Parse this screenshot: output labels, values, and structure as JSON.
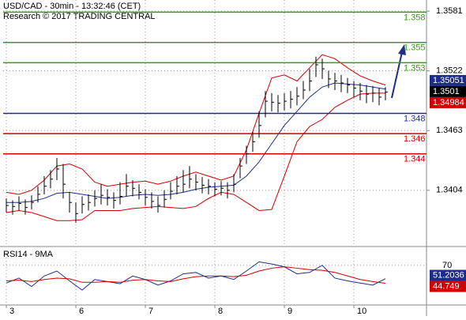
{
  "header": {
    "title": "USD/CAD - 30min - 13:32:46 (CET)",
    "credit": "Research © 2017 TRADING CENTRAL"
  },
  "chart_data": [
    {
      "type": "ohlc",
      "color": "#000000",
      "ylim": [
        1.335,
        1.3592
      ],
      "yticks": [
        1.3581,
        1.3522,
        1.3463,
        1.3404
      ],
      "xlim": [
        -0.5,
        66.5
      ],
      "xticks": [
        {
          "value": 0,
          "label": "3"
        },
        {
          "value": 11,
          "label": "6"
        },
        {
          "value": 22,
          "label": "7"
        },
        {
          "value": 33,
          "label": "8"
        },
        {
          "value": 44,
          "label": "9"
        },
        {
          "value": 55,
          "label": "10"
        }
      ],
      "grid": true,
      "close": [
        1.3389,
        1.3388,
        1.3391,
        1.3387,
        1.3392,
        1.34,
        1.3408,
        1.3415,
        1.3425,
        1.341,
        1.3392,
        1.3381,
        1.339,
        1.3392,
        1.3396,
        1.3399,
        1.3397,
        1.3394,
        1.3398,
        1.3408,
        1.3406,
        1.3402,
        1.3397,
        1.3393,
        1.3389,
        1.3395,
        1.3403,
        1.3408,
        1.341,
        1.3415,
        1.3412,
        1.3409,
        1.3408,
        1.3405,
        1.3406,
        1.3404,
        1.341,
        1.3428,
        1.344,
        1.3452,
        1.3468,
        1.3492,
        1.3491,
        1.349,
        1.3492,
        1.3494,
        1.3497,
        1.3503,
        1.3512,
        1.3528,
        1.3524,
        1.3514,
        1.3512,
        1.351,
        1.3508,
        1.3505,
        1.3502,
        1.3499,
        1.35,
        1.3496,
        1.3501
      ],
      "high": [
        1.3396,
        1.3394,
        1.3398,
        1.3395,
        1.3399,
        1.3408,
        1.3418,
        1.3424,
        1.3436,
        1.343,
        1.3402,
        1.3392,
        1.3398,
        1.34,
        1.3404,
        1.341,
        1.3405,
        1.3402,
        1.3412,
        1.342,
        1.3414,
        1.341,
        1.3405,
        1.3402,
        1.3398,
        1.3404,
        1.3412,
        1.3418,
        1.3424,
        1.3428,
        1.342,
        1.3417,
        1.3415,
        1.3412,
        1.3413,
        1.3412,
        1.342,
        1.3436,
        1.3448,
        1.3462,
        1.3482,
        1.3502,
        1.35,
        1.3498,
        1.35,
        1.3502,
        1.3506,
        1.3512,
        1.3524,
        1.3536,
        1.3534,
        1.3522,
        1.352,
        1.3518,
        1.3515,
        1.3512,
        1.351,
        1.3508,
        1.3507,
        1.3505,
        1.3506
      ],
      "low": [
        1.3382,
        1.338,
        1.3384,
        1.338,
        1.3385,
        1.3392,
        1.34,
        1.3406,
        1.3414,
        1.3396,
        1.3382,
        1.3372,
        1.3381,
        1.3384,
        1.3388,
        1.339,
        1.3389,
        1.3386,
        1.339,
        1.3398,
        1.3398,
        1.3395,
        1.3389,
        1.3386,
        1.3382,
        1.3387,
        1.3395,
        1.34,
        1.3402,
        1.3406,
        1.3404,
        1.3401,
        1.34,
        1.3398,
        1.3399,
        1.3396,
        1.3402,
        1.3416,
        1.343,
        1.3442,
        1.3456,
        1.3476,
        1.3482,
        1.3481,
        1.3483,
        1.3485,
        1.3488,
        1.3494,
        1.3502,
        1.3516,
        1.3514,
        1.3505,
        1.3503,
        1.3501,
        1.35,
        1.3496,
        1.3493,
        1.349,
        1.3491,
        1.3488,
        1.3493
      ],
      "bands": [
        {
          "color": "#d00000",
          "x": [
            0,
            2,
            4,
            6,
            8,
            10,
            12,
            14,
            16,
            18,
            20,
            22,
            24,
            26,
            28,
            30,
            32,
            34,
            36,
            38,
            40,
            42,
            44,
            46,
            48,
            50,
            52,
            54,
            56,
            58,
            60
          ],
          "values": [
            1.3402,
            1.34,
            1.3404,
            1.3414,
            1.3428,
            1.343,
            1.3425,
            1.3412,
            1.3408,
            1.341,
            1.3412,
            1.3413,
            1.341,
            1.3413,
            1.3418,
            1.3422,
            1.3418,
            1.3414,
            1.3418,
            1.3444,
            1.348,
            1.3515,
            1.3518,
            1.3512,
            1.3525,
            1.3538,
            1.3534,
            1.3525,
            1.3517,
            1.3512,
            1.3508
          ]
        },
        {
          "color": "#d00000",
          "x": [
            0,
            2,
            4,
            6,
            8,
            10,
            12,
            14,
            16,
            18,
            20,
            22,
            24,
            26,
            28,
            30,
            32,
            34,
            36,
            38,
            40,
            42,
            44,
            46,
            48,
            50,
            52,
            54,
            56,
            58,
            60
          ],
          "values": [
            1.3382,
            1.3384,
            1.3382,
            1.3378,
            1.3374,
            1.3374,
            1.3375,
            1.3384,
            1.3384,
            1.3384,
            1.3386,
            1.3387,
            1.3388,
            1.3387,
            1.3386,
            1.3388,
            1.3396,
            1.3402,
            1.34,
            1.3392,
            1.3384,
            1.3385,
            1.3418,
            1.3452,
            1.3467,
            1.3474,
            1.3486,
            1.3493,
            1.3499,
            1.35,
            1.35
          ]
        },
        {
          "color": "#1e2d8c",
          "x": [
            0,
            2,
            4,
            6,
            8,
            10,
            12,
            14,
            16,
            18,
            20,
            22,
            24,
            26,
            28,
            30,
            32,
            34,
            36,
            38,
            40,
            42,
            44,
            46,
            48,
            50,
            52,
            54,
            56,
            58,
            60
          ],
          "values": [
            1.3392,
            1.3392,
            1.3393,
            1.3396,
            1.3401,
            1.3402,
            1.34,
            1.3398,
            1.3396,
            1.3397,
            1.3399,
            1.34,
            1.3399,
            1.34,
            1.3402,
            1.3405,
            1.3407,
            1.3408,
            1.3409,
            1.3418,
            1.3432,
            1.345,
            1.3468,
            1.3482,
            1.3496,
            1.3506,
            1.351,
            1.3509,
            1.3508,
            1.3506,
            1.3504
          ]
        }
      ],
      "levels": [
        {
          "value": 1.358,
          "color": "#3a9a1a"
        },
        {
          "value": 1.355,
          "color": "#3a9a1a"
        },
        {
          "value": 1.353,
          "color": "#3a9a1a"
        },
        {
          "value": 1.348,
          "color": "#1e2d8c"
        },
        {
          "value": 1.346,
          "color": "#d00000"
        },
        {
          "value": 1.344,
          "color": "#d00000"
        }
      ],
      "price_tags": [
        {
          "value": 1.35051,
          "color": "#1e2d8c"
        },
        {
          "value": 1.3501,
          "color": "#000000"
        },
        {
          "value": 1.34984,
          "color": "#d00000"
        }
      ]
    },
    {
      "type": "line",
      "title": "RSI14 - 9MA",
      "ylim": [
        15,
        90
      ],
      "yticks": [
        70
      ],
      "series": [
        {
          "color": "#1e2d8c",
          "x": [
            0,
            2,
            4,
            6,
            8,
            10,
            12,
            14,
            16,
            18,
            20,
            22,
            24,
            26,
            28,
            30,
            32,
            34,
            36,
            38,
            40,
            42,
            44,
            46,
            48,
            50,
            52,
            54,
            56,
            58,
            60
          ],
          "values": [
            45,
            52,
            40,
            55,
            62,
            48,
            35,
            50,
            47,
            44,
            55,
            50,
            42,
            48,
            58,
            60,
            52,
            55,
            50,
            62,
            75,
            72,
            68,
            58,
            60,
            70,
            52,
            48,
            45,
            42,
            51.2
          ]
        },
        {
          "color": "#d00000",
          "x": [
            0,
            2,
            4,
            6,
            8,
            10,
            12,
            14,
            16,
            18,
            20,
            22,
            24,
            26,
            28,
            30,
            32,
            34,
            36,
            38,
            40,
            42,
            44,
            46,
            48,
            50,
            52,
            54,
            56,
            58,
            60
          ],
          "values": [
            48,
            49,
            47,
            50,
            52,
            51,
            46,
            46,
            47,
            46,
            49,
            50,
            48,
            47,
            51,
            54,
            55,
            55,
            54,
            56,
            62,
            66,
            68,
            66,
            64,
            63,
            60,
            55,
            50,
            47,
            44.7
          ]
        }
      ],
      "price_tags": [
        {
          "value": 51.2036,
          "color": "#1e2d8c"
        },
        {
          "value": 44.749,
          "color": "#d00000"
        }
      ]
    }
  ]
}
